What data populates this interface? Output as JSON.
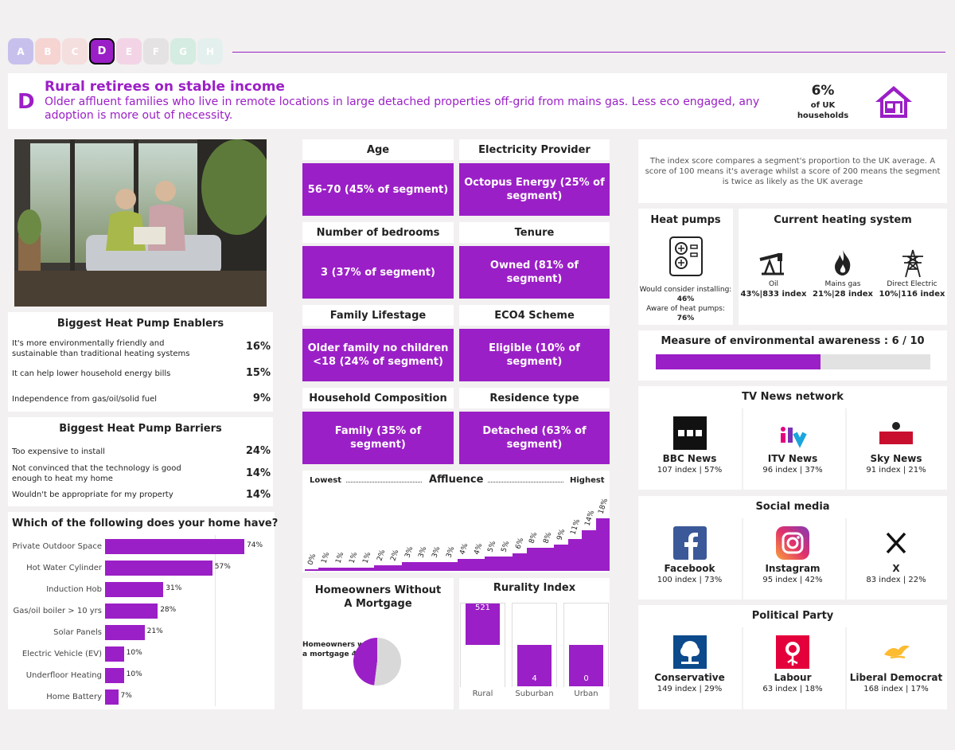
{
  "tabs": [
    {
      "label": "A",
      "color": "#c8c0ec"
    },
    {
      "label": "B",
      "color": "#f6d4d2"
    },
    {
      "label": "C",
      "color": "#f5dede"
    },
    {
      "label": "D",
      "color": "#9b1fc6"
    },
    {
      "label": "E",
      "color": "#f3d4e6"
    },
    {
      "label": "F",
      "color": "#e4e2e2"
    },
    {
      "label": "G",
      "color": "#d4ece2"
    },
    {
      "label": "H",
      "color": "#e4f0ee"
    }
  ],
  "header": {
    "letter": "D",
    "title": "Rural retirees on stable income",
    "description": "Older affluent families who live in remote locations in large detached properties off-grid from mains gas. Less eco engaged, any adoption is more out of necessity.",
    "share_pct": "6%",
    "share_label_1": "of UK",
    "share_label_2": "households",
    "icon": "house-icon"
  },
  "enablers": {
    "title": "Biggest Heat Pump Enablers",
    "items": [
      {
        "text": "It's more environmentally friendly and sustainable than traditional heating systems",
        "pct": "16%"
      },
      {
        "text": "It can help lower household energy bills",
        "pct": "15%"
      },
      {
        "text": "Independence from gas/oil/solid fuel",
        "pct": "9%"
      }
    ]
  },
  "barriers": {
    "title": "Biggest Heat Pump Barriers",
    "items": [
      {
        "text": "Too expensive to install",
        "pct": "24%"
      },
      {
        "text": "Not convinced that the technology is good enough to heat my home",
        "pct": "14%"
      },
      {
        "text": "Wouldn't be appropriate for my property",
        "pct": "14%"
      }
    ]
  },
  "home_has": {
    "title": "Which of the following does your home have?",
    "chart_data": {
      "type": "bar",
      "orientation": "horizontal",
      "categories": [
        "Private Outdoor Space",
        "Hot Water Cylinder",
        "Induction Hob",
        "Gas/oil boiler >  10 yrs",
        "Solar Panels",
        "Electric Vehicle (EV)",
        "Underfloor Heating",
        "Home Battery"
      ],
      "values": [
        74,
        57,
        31,
        28,
        21,
        10,
        10,
        7
      ],
      "value_labels": [
        "74%",
        "57%",
        "31%",
        "28%",
        "21%",
        "10%",
        "10%",
        "7%"
      ]
    }
  },
  "tiles": {
    "age_title": "Age",
    "age_value": "56-70 (45% of segment)",
    "elec_title": "Electricity Provider",
    "elec_value": "Octopus Energy  (25% of segment)",
    "bed_title": "Number of bedrooms",
    "bed_value": "3 (37% of segment)",
    "tenure_title": "Tenure",
    "tenure_value": "Owned (81% of segment)",
    "life_title": "Family Lifestage",
    "life_value": "Older family no children <18 (24% of segment)",
    "eco_title": "ECO4 Scheme",
    "eco_value": "Eligible (10% of segment)",
    "comp_title": "Household Composition",
    "comp_value": "Family (35% of segment)",
    "res_title": "Residence type",
    "res_value": "Detached (63% of segment)"
  },
  "affluence": {
    "title": "Affluence",
    "low_label": "Lowest",
    "high_label": "Highest",
    "chart_data": {
      "type": "bar",
      "values": [
        0,
        1,
        1,
        1,
        1,
        2,
        2,
        3,
        3,
        3,
        3,
        4,
        4,
        5,
        5,
        6,
        8,
        8,
        9,
        11,
        14,
        18
      ],
      "value_labels": [
        "0%",
        "1%",
        "1%",
        "1%",
        "1%",
        "2%",
        "2%",
        "3%",
        "3%",
        "3%",
        "3%",
        "4%",
        "4%",
        "5%",
        "5%",
        "6%",
        "8%",
        "8%",
        "9%",
        "11%",
        "14%",
        "18%"
      ]
    }
  },
  "mortgage": {
    "title": "Homeowners Without A Mortgage",
    "label_line1": "Homeowners without",
    "label_line2": "a mortgage",
    "pct_label": "48%",
    "chart_data": {
      "type": "pie",
      "values": [
        48,
        52
      ],
      "colors": [
        "#9b1fc6",
        "#d8d8d8"
      ]
    }
  },
  "rurality": {
    "title": "Rurality Index",
    "chart_data": {
      "type": "bar",
      "categories": [
        "Rural",
        "Suburban",
        "Urban"
      ],
      "values": [
        521,
        4,
        0
      ],
      "value_labels": [
        "521",
        "4",
        "0"
      ]
    }
  },
  "index_note": "The index score compares a segment's proportion to the UK average. A score of 100 means it's average whilst a score of 200 means the segment is twice as likely as the UK average",
  "heat_pumps": {
    "title": "Heat pumps",
    "icon": "heat-pump-icon",
    "consider_label": "Would consider installing:",
    "consider_value": "46%",
    "aware_label": "Aware of heat pumps:",
    "aware_value": "76%"
  },
  "heating": {
    "title": "Current heating system",
    "items": [
      {
        "icon": "oil-pump-icon",
        "name": "Oil",
        "stat": "43%|833 index"
      },
      {
        "icon": "flame-icon",
        "name": "Mains gas",
        "stat": "21%|28 index"
      },
      {
        "icon": "pylon-icon",
        "name": "Direct Electric",
        "stat": "10%|116 index"
      }
    ]
  },
  "awareness": {
    "label": "Measure of environmental awareness :  6 / 10",
    "value": 6,
    "max": 10
  },
  "tv": {
    "title": "TV News network",
    "items": [
      {
        "icon": "bbc-logo-icon",
        "name": "BBC News",
        "stat": "107 index | 57%",
        "logo_text": "BBC"
      },
      {
        "icon": "itv-logo-icon",
        "name": "ITV News",
        "stat": "96 index | 37%",
        "logo_text": "itv"
      },
      {
        "icon": "sky-news-logo-icon",
        "name": "Sky News",
        "stat": "91 index | 21%",
        "logo_text": "sky"
      }
    ]
  },
  "social": {
    "title": "Social media",
    "items": [
      {
        "icon": "facebook-logo-icon",
        "name": "Facebook",
        "stat": "100 index | 73%"
      },
      {
        "icon": "instagram-logo-icon",
        "name": "Instagram",
        "stat": "95 index | 42%"
      },
      {
        "icon": "x-logo-icon",
        "name": "X",
        "stat": "83 index | 22%"
      }
    ]
  },
  "politics": {
    "title": "Political Party",
    "items": [
      {
        "icon": "conservative-logo-icon",
        "name": "Conservative",
        "stat": "149 index | 29%"
      },
      {
        "icon": "labour-logo-icon",
        "name": "Labour",
        "stat": "63 index | 18%"
      },
      {
        "icon": "libdem-logo-icon",
        "name": "Liberal Democrat",
        "stat": "168 index | 17%"
      }
    ]
  }
}
